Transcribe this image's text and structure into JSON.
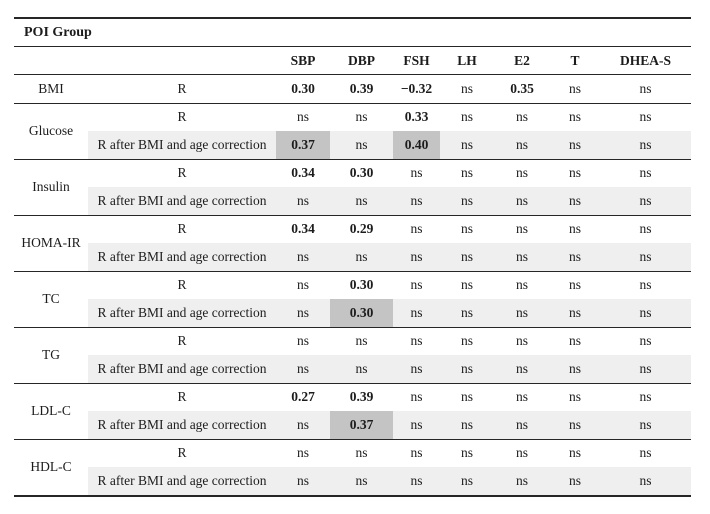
{
  "title": "POI Group",
  "columns": [
    "SBP",
    "DBP",
    "FSH",
    "LH",
    "E2",
    "T",
    "DHEA-S"
  ],
  "ns_label": "ns",
  "row_label_r": "R",
  "row_label_corrected": "R after BMI and age correction",
  "colors": {
    "stripe": "#efefef",
    "highlight": "#c4c4c4",
    "border": "#262626",
    "text": "#1c1c1c"
  },
  "groups": [
    {
      "param": "BMI",
      "rows": [
        {
          "label": "R",
          "shaded": false,
          "highlight": [],
          "values": [
            "0.30",
            "0.39",
            "−0.32",
            "ns",
            "0.35",
            "ns",
            "ns"
          ]
        }
      ]
    },
    {
      "param": "Glucose",
      "rows": [
        {
          "label": "R",
          "shaded": false,
          "highlight": [],
          "values": [
            "ns",
            "ns",
            "0.33",
            "ns",
            "ns",
            "ns",
            "ns"
          ]
        },
        {
          "label": "R after BMI and age correction",
          "shaded": true,
          "highlight": [
            0,
            2
          ],
          "values": [
            "0.37",
            "ns",
            "0.40",
            "ns",
            "ns",
            "ns",
            "ns"
          ]
        }
      ]
    },
    {
      "param": "Insulin",
      "rows": [
        {
          "label": "R",
          "shaded": false,
          "highlight": [],
          "values": [
            "0.34",
            "0.30",
            "ns",
            "ns",
            "ns",
            "ns",
            "ns"
          ]
        },
        {
          "label": "R after BMI and age correction",
          "shaded": true,
          "highlight": [],
          "values": [
            "ns",
            "ns",
            "ns",
            "ns",
            "ns",
            "ns",
            "ns"
          ]
        }
      ]
    },
    {
      "param": "HOMA-IR",
      "rows": [
        {
          "label": "R",
          "shaded": false,
          "highlight": [],
          "values": [
            "0.34",
            "0.29",
            "ns",
            "ns",
            "ns",
            "ns",
            "ns"
          ]
        },
        {
          "label": "R after BMI and age correction",
          "shaded": true,
          "highlight": [],
          "values": [
            "ns",
            "ns",
            "ns",
            "ns",
            "ns",
            "ns",
            "ns"
          ]
        }
      ]
    },
    {
      "param": "TC",
      "rows": [
        {
          "label": "R",
          "shaded": false,
          "highlight": [],
          "values": [
            "ns",
            "0.30",
            "ns",
            "ns",
            "ns",
            "ns",
            "ns"
          ]
        },
        {
          "label": "R after BMI and age correction",
          "shaded": true,
          "highlight": [
            1
          ],
          "values": [
            "ns",
            "0.30",
            "ns",
            "ns",
            "ns",
            "ns",
            "ns"
          ]
        }
      ]
    },
    {
      "param": "TG",
      "rows": [
        {
          "label": "R",
          "shaded": false,
          "highlight": [],
          "values": [
            "ns",
            "ns",
            "ns",
            "ns",
            "ns",
            "ns",
            "ns"
          ]
        },
        {
          "label": "R after BMI and age correction",
          "shaded": true,
          "highlight": [],
          "values": [
            "ns",
            "ns",
            "ns",
            "ns",
            "ns",
            "ns",
            "ns"
          ]
        }
      ]
    },
    {
      "param": "LDL-C",
      "rows": [
        {
          "label": "R",
          "shaded": false,
          "highlight": [],
          "values": [
            "0.27",
            "0.39",
            "ns",
            "ns",
            "ns",
            "ns",
            "ns"
          ]
        },
        {
          "label": "R after BMI and age correction",
          "shaded": true,
          "highlight": [
            1
          ],
          "values": [
            "ns",
            "0.37",
            "ns",
            "ns",
            "ns",
            "ns",
            "ns"
          ]
        }
      ]
    },
    {
      "param": "HDL-C",
      "rows": [
        {
          "label": "R",
          "shaded": false,
          "highlight": [],
          "values": [
            "ns",
            "ns",
            "ns",
            "ns",
            "ns",
            "ns",
            "ns"
          ]
        },
        {
          "label": "R after BMI and age correction",
          "shaded": true,
          "highlight": [],
          "values": [
            "ns",
            "ns",
            "ns",
            "ns",
            "ns",
            "ns",
            "ns"
          ]
        }
      ]
    }
  ]
}
